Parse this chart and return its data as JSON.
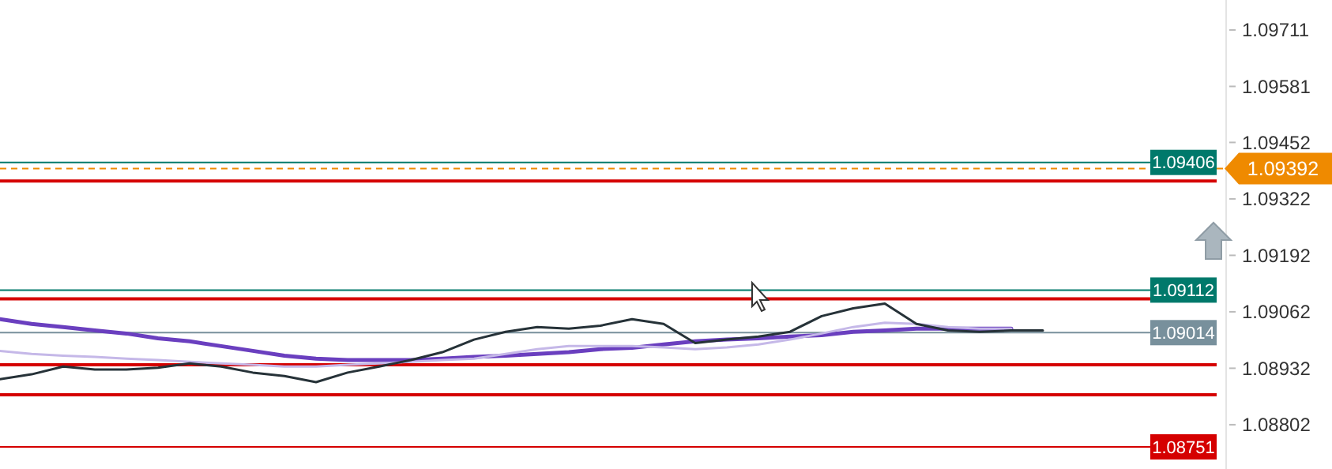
{
  "chart_data": {
    "type": "line",
    "categories": [
      null,
      null,
      null,
      null,
      null,
      null,
      null,
      null,
      null,
      null,
      null,
      null,
      null,
      null,
      null,
      null,
      null,
      null,
      null,
      null,
      null,
      null,
      null,
      null,
      null,
      null,
      null,
      null,
      null,
      null,
      null,
      null,
      null,
      null,
      null,
      null,
      null,
      null,
      null
    ],
    "ylim": [
      1.087,
      1.0978
    ],
    "yticks": [
      1.08802,
      1.08932,
      1.09062,
      1.09192,
      1.09322,
      1.09452,
      1.09581,
      1.09711
    ],
    "grid": false,
    "tick_labels": "y",
    "line_style": "solid",
    "marker": "none",
    "series": [
      {
        "color": "#6a3fbf",
        "values": [
          1.09045,
          1.09034,
          1.09027,
          1.09019,
          1.09012,
          1.09001,
          1.08994,
          1.08983,
          1.08972,
          1.08961,
          1.08954,
          1.08951,
          1.08951,
          1.08951,
          1.08954,
          1.08958,
          1.08961,
          1.08965,
          1.08969,
          1.08976,
          1.08979,
          1.08987,
          1.08994,
          1.08998,
          1.09001,
          1.09005,
          1.09008,
          1.09016,
          1.09019,
          1.09023,
          1.09023,
          1.09023,
          1.09023,
          null,
          null,
          null,
          null,
          null,
          null
        ]
      },
      {
        "color": "#c5b8e8",
        "values": [
          1.08972,
          1.08965,
          1.08961,
          1.08958,
          1.08954,
          1.08951,
          1.08947,
          1.08943,
          1.0894,
          1.08936,
          1.08936,
          1.0894,
          1.08943,
          1.08947,
          1.08951,
          1.08954,
          1.08965,
          1.08976,
          1.08983,
          1.08983,
          1.08983,
          1.0898,
          1.08976,
          1.0898,
          1.08987,
          1.08998,
          1.09012,
          1.09027,
          1.09037,
          1.09034,
          1.09027,
          1.09023,
          1.09023,
          null,
          null,
          null,
          null,
          null,
          null
        ]
      },
      {
        "color": "#263238",
        "values": [
          1.08907,
          1.08918,
          1.08936,
          1.08929,
          1.08929,
          1.08933,
          1.08943,
          1.08936,
          1.08922,
          1.08914,
          1.089,
          1.08922,
          1.08936,
          1.08951,
          1.08969,
          1.08998,
          1.09016,
          1.09027,
          1.09023,
          1.0903,
          1.09045,
          1.09034,
          1.0899,
          1.08998,
          1.09005,
          1.09016,
          1.09052,
          1.0907,
          1.09081,
          1.09034,
          1.09019,
          1.09016,
          1.09019,
          1.09019,
          null,
          null,
          null,
          null,
          null
        ]
      }
    ],
    "ref_lines": [
      {
        "axis": "y",
        "value": 1.09406,
        "label": "1.09406",
        "color": "#00796b"
      },
      {
        "axis": "y",
        "value": 1.09392,
        "label": "1.09392",
        "color": "#ef8a00",
        "line_style": "dashed"
      },
      {
        "axis": "y",
        "value": 1.09363,
        "color": "#d50000"
      },
      {
        "axis": "y",
        "value": 1.09112,
        "label": "1.09112",
        "color": "#00796b"
      },
      {
        "axis": "y",
        "value": 1.09092,
        "color": "#d50000"
      },
      {
        "axis": "y",
        "value": 1.09014,
        "label": "1.09014",
        "color": "#78909c"
      },
      {
        "axis": "y",
        "value": 1.0894,
        "color": "#d50000"
      },
      {
        "axis": "y",
        "value": 1.08871,
        "color": "#d50000"
      },
      {
        "axis": "y",
        "value": 1.08751,
        "label": "1.08751",
        "color": "#d50000"
      }
    ]
  }
}
